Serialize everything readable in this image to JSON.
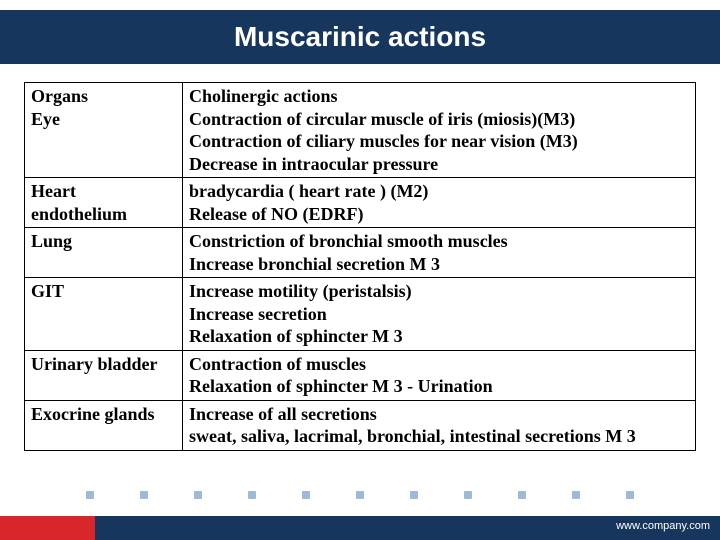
{
  "title": "Muscarinic actions",
  "columns": {
    "organ": "Organs",
    "action": "Cholinergic actions"
  },
  "rows": [
    {
      "organ": "Eye",
      "action": "Contraction of circular muscle of iris (miosis)(M3)\nContraction of ciliary muscles for near vision (M3)\nDecrease in intraocular pressure"
    },
    {
      "organ": "Heart\nendothelium",
      "action": "bradycardia (   heart rate ) (M2)\nRelease of NO (EDRF)"
    },
    {
      "organ": "Lung",
      "action": "Constriction of bronchial smooth muscles\nIncrease bronchial secretion M 3"
    },
    {
      "organ": "GIT",
      "action": "Increase motility (peristalsis)\nIncrease secretion\nRelaxation of sphincter  M 3"
    },
    {
      "organ": "Urinary bladder",
      "action": "Contraction of muscles\nRelaxation of sphincter M 3 - Urination"
    },
    {
      "organ": "Exocrine glands",
      "action": "Increase of all secretions\nsweat, saliva, lacrimal, bronchial, intestinal secretions M 3"
    }
  ],
  "footer_link": "www.company.com",
  "colors": {
    "title_bg": "#17365d",
    "title_fg": "#ffffff",
    "border": "#000000",
    "footer_accent": "#d9262a",
    "dot": "#9db8d9"
  }
}
